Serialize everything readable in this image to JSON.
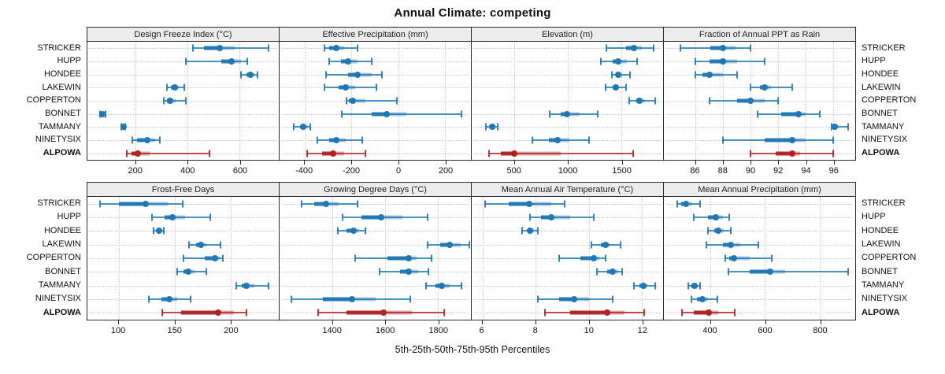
{
  "title": "Annual Climate: competing",
  "caption": "5th-25th-50th-75th-95th Percentiles",
  "stations": [
    "STRICKER",
    "HUPP",
    "HONDEE",
    "LAKEWIN",
    "COPPERTON",
    "BONNET",
    "TAMMANY",
    "NINETYSIX",
    "ALPOWA"
  ],
  "highlight_station": "ALPOWA",
  "colors": {
    "series": "#1f77b4",
    "highlight": "#b22222",
    "strip_bg": "#ececec",
    "grid": "#c9c9c9",
    "border": "#2a2a2a"
  },
  "percentiles": [
    5,
    25,
    50,
    75,
    95
  ],
  "chart_data": {
    "type": "dotplot",
    "note": "Each series value array is [p5,p25,p50,p75,p95]",
    "panels": [
      {
        "row": 1,
        "title": "Design Freeze Index (°C)",
        "xlim": [
          15,
          750
        ],
        "ticks": [
          200,
          400,
          600
        ],
        "series": [
          {
            "name": "STRICKER",
            "values": [
              420,
              463,
              522,
              582,
              710
            ]
          },
          {
            "name": "HUPP",
            "values": [
              394,
              528,
              570,
              606,
              630
            ]
          },
          {
            "name": "HONDEE",
            "values": [
              605,
              625,
              640,
              655,
              668
            ]
          },
          {
            "name": "LAKEWIN",
            "values": [
              320,
              337,
              352,
              367,
              387
            ]
          },
          {
            "name": "COPPERTON",
            "values": [
              307,
              320,
              334,
              355,
              394
            ]
          },
          {
            "name": "BONNET",
            "values": [
              63,
              68,
              72,
              78,
              84
            ]
          },
          {
            "name": "TAMMANY",
            "values": [
              146,
              150,
              155,
              158,
              161
            ]
          },
          {
            "name": "NINETYSIX",
            "values": [
              188,
              205,
              245,
              275,
              293
            ]
          },
          {
            "name": "ALPOWA",
            "values": [
              165,
              185,
              210,
              255,
              485
            ]
          }
        ]
      },
      {
        "row": 1,
        "title": "Effective Precipitation (mm)",
        "xlim": [
          -507,
          310
        ],
        "ticks": [
          -400,
          -200,
          0,
          200
        ],
        "series": [
          {
            "name": "STRICKER",
            "values": [
              -315,
              -295,
              -265,
              -230,
              -175
            ]
          },
          {
            "name": "HUPP",
            "values": [
              -295,
              -245,
              -215,
              -175,
              -115
            ]
          },
          {
            "name": "HONDEE",
            "values": [
              -310,
              -215,
              -175,
              -115,
              -70
            ]
          },
          {
            "name": "LAKEWIN",
            "values": [
              -315,
              -255,
              -225,
              -185,
              -95
            ]
          },
          {
            "name": "COPPERTON",
            "values": [
              -220,
              -210,
              -195,
              -140,
              -5
            ]
          },
          {
            "name": "BONNET",
            "values": [
              -240,
              -115,
              -50,
              35,
              270
            ]
          },
          {
            "name": "TAMMANY",
            "values": [
              -445,
              -420,
              -405,
              -385,
              -375
            ]
          },
          {
            "name": "NINETYSIX",
            "values": [
              -345,
              -295,
              -265,
              -225,
              -155
            ]
          },
          {
            "name": "ALPOWA",
            "values": [
              -390,
              -325,
              -280,
              -230,
              -140
            ]
          }
        ]
      },
      {
        "row": 1,
        "title": "Elevation (m)",
        "xlim": [
          100,
          1890
        ],
        "ticks": [
          500,
          1000,
          1500
        ],
        "series": [
          {
            "name": "STRICKER",
            "values": [
              1360,
              1545,
              1615,
              1690,
              1800
            ]
          },
          {
            "name": "HUPP",
            "values": [
              1310,
              1420,
              1470,
              1550,
              1650
            ]
          },
          {
            "name": "HONDEE",
            "values": [
              1410,
              1445,
              1470,
              1510,
              1580
            ]
          },
          {
            "name": "LAKEWIN",
            "values": [
              1350,
              1420,
              1450,
              1480,
              1545
            ]
          },
          {
            "name": "COPPERTON",
            "values": [
              1570,
              1640,
              1670,
              1720,
              1820
            ]
          },
          {
            "name": "BONNET",
            "values": [
              830,
              930,
              990,
              1110,
              1280
            ]
          },
          {
            "name": "TAMMANY",
            "values": [
              230,
              275,
              295,
              320,
              340
            ]
          },
          {
            "name": "NINETYSIX",
            "values": [
              670,
              820,
              900,
              1010,
              1200
            ]
          },
          {
            "name": "ALPOWA",
            "values": [
              265,
              370,
              500,
              930,
              1610
            ]
          }
        ]
      },
      {
        "row": 1,
        "title": "Fraction of Annual PPT as Rain",
        "xlim": [
          83.7,
          97.6
        ],
        "ticks": [
          86,
          88,
          90,
          92,
          94,
          96
        ],
        "series": [
          {
            "name": "STRICKER",
            "values": [
              84.9,
              87.1,
              88,
              88.9,
              90
            ]
          },
          {
            "name": "HUPP",
            "values": [
              86,
              87,
              88,
              89,
              91
            ]
          },
          {
            "name": "HONDEE",
            "values": [
              86,
              86.5,
              87,
              88,
              89
            ]
          },
          {
            "name": "LAKEWIN",
            "values": [
              90,
              90.7,
              91,
              91.5,
              93
            ]
          },
          {
            "name": "COPPERTON",
            "values": [
              87,
              89,
              90,
              91,
              92
            ]
          },
          {
            "name": "BONNET",
            "values": [
              90.5,
              92.2,
              93.5,
              94,
              95
            ]
          },
          {
            "name": "TAMMANY",
            "values": [
              95.9,
              96,
              96.1,
              96.4,
              97.1
            ]
          },
          {
            "name": "NINETYSIX",
            "values": [
              88,
              91,
              93,
              94,
              96
            ]
          },
          {
            "name": "ALPOWA",
            "values": [
              90,
              91.8,
              93,
              93.6,
              96
            ]
          }
        ]
      },
      {
        "row": 2,
        "title": "Frost-Free Days",
        "xlim": [
          72,
          243
        ],
        "ticks": [
          100,
          150,
          200
        ],
        "series": [
          {
            "name": "STRICKER",
            "values": [
              83,
              100,
              124,
              144,
              157
            ]
          },
          {
            "name": "HUPP",
            "values": [
              130,
              141,
              148,
              159,
              182
            ]
          },
          {
            "name": "HONDEE",
            "values": [
              131,
              134,
              136,
              138,
              140
            ]
          },
          {
            "name": "LAKEWIN",
            "values": [
              163,
              169,
              173,
              178,
              191
            ]
          },
          {
            "name": "COPPERTON",
            "values": [
              158,
              177,
              186,
              190,
              193
            ]
          },
          {
            "name": "BONNET",
            "values": [
              152,
              158,
              162,
              168,
              178
            ]
          },
          {
            "name": "TAMMANY",
            "values": [
              205,
              210,
              214,
              221,
              234
            ]
          },
          {
            "name": "NINETYSIX",
            "values": [
              127,
              138,
              145,
              152,
              164
            ]
          },
          {
            "name": "ALPOWA",
            "values": [
              139,
              156,
              189,
              203,
              214
            ]
          }
        ]
      },
      {
        "row": 2,
        "title": "Growing Degree Days (°C)",
        "xlim": [
          1200,
          1925
        ],
        "ticks": [
          1400,
          1600,
          1800
        ],
        "series": [
          {
            "name": "STRICKER",
            "values": [
              1285,
              1330,
              1375,
              1425,
              1495
            ]
          },
          {
            "name": "HUPP",
            "values": [
              1440,
              1510,
              1585,
              1665,
              1760
            ]
          },
          {
            "name": "HONDEE",
            "values": [
              1420,
              1455,
              1480,
              1500,
              1525
            ]
          },
          {
            "name": "LAKEWIN",
            "values": [
              1760,
              1810,
              1845,
              1885,
              1920
            ]
          },
          {
            "name": "COPPERTON",
            "values": [
              1485,
              1610,
              1690,
              1720,
              1775
            ]
          },
          {
            "name": "BONNET",
            "values": [
              1580,
              1655,
              1690,
              1725,
              1765
            ]
          },
          {
            "name": "TAMMANY",
            "values": [
              1755,
              1790,
              1815,
              1845,
              1890
            ]
          },
          {
            "name": "NINETYSIX",
            "values": [
              1245,
              1365,
              1475,
              1565,
              1695
            ]
          },
          {
            "name": "ALPOWA",
            "values": [
              1345,
              1455,
              1595,
              1700,
              1825
            ]
          }
        ]
      },
      {
        "row": 2,
        "title": "Mean Annual Air Temperature (°C)",
        "xlim": [
          5.6,
          12.8
        ],
        "ticks": [
          6,
          8,
          10,
          12
        ],
        "series": [
          {
            "name": "STRICKER",
            "values": [
              6.1,
              7.0,
              7.75,
              8.6,
              9.1
            ]
          },
          {
            "name": "HUPP",
            "values": [
              7.8,
              8.2,
              8.6,
              9.3,
              10.2
            ]
          },
          {
            "name": "HONDEE",
            "values": [
              7.5,
              7.7,
              7.8,
              7.95,
              8.1
            ]
          },
          {
            "name": "LAKEWIN",
            "values": [
              10.1,
              10.45,
              10.65,
              10.8,
              11.2
            ]
          },
          {
            "name": "COPPERTON",
            "values": [
              8.9,
              9.7,
              10.2,
              10.4,
              10.65
            ]
          },
          {
            "name": "BONNET",
            "values": [
              10.3,
              10.7,
              10.9,
              11.1,
              11.25
            ]
          },
          {
            "name": "TAMMANY",
            "values": [
              11.7,
              11.9,
              12.05,
              12.2,
              12.5
            ]
          },
          {
            "name": "NINETYSIX",
            "values": [
              8.1,
              8.9,
              9.45,
              10.0,
              10.9
            ]
          },
          {
            "name": "ALPOWA",
            "values": [
              8.35,
              9.3,
              10.7,
              11.35,
              12.1
            ]
          }
        ]
      },
      {
        "row": 2,
        "title": "Mean Annual Precipitation (mm)",
        "xlim": [
          230,
          930
        ],
        "ticks": [
          400,
          600,
          800
        ],
        "series": [
          {
            "name": "STRICKER",
            "values": [
              278,
              293,
              310,
              335,
              363
            ]
          },
          {
            "name": "HUPP",
            "values": [
              340,
              390,
              420,
              445,
              470
            ]
          },
          {
            "name": "HONDEE",
            "values": [
              390,
              415,
              430,
              450,
              475
            ]
          },
          {
            "name": "LAKEWIN",
            "values": [
              385,
              445,
              475,
              510,
              575
            ]
          },
          {
            "name": "COPPERTON",
            "values": [
              455,
              470,
              485,
              545,
              625
            ]
          },
          {
            "name": "BONNET",
            "values": [
              465,
              545,
              620,
              675,
              905
            ]
          },
          {
            "name": "TAMMANY",
            "values": [
              320,
              332,
              341,
              352,
              363
            ]
          },
          {
            "name": "NINETYSIX",
            "values": [
              330,
              352,
              370,
              390,
              425
            ]
          },
          {
            "name": "ALPOWA",
            "values": [
              295,
              340,
              395,
              430,
              490
            ]
          }
        ]
      }
    ]
  }
}
